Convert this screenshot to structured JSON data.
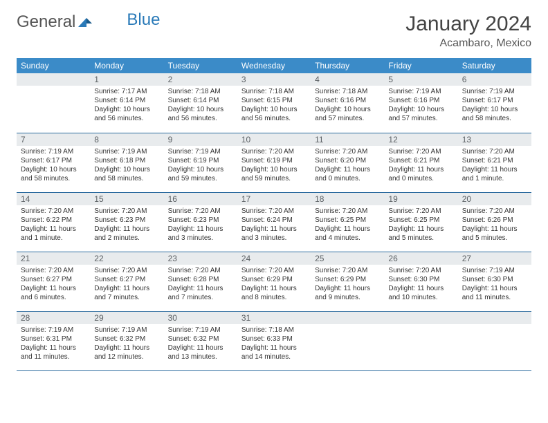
{
  "logo": {
    "text_gray": "General",
    "text_blue": "Blue"
  },
  "title": "January 2024",
  "location": "Acambaro, Mexico",
  "colors": {
    "header_bg": "#3b8bc8",
    "daynum_bg": "#e8ebed",
    "row_border": "#2a6a9e",
    "logo_blue": "#2a7ab8"
  },
  "weekdays": [
    "Sunday",
    "Monday",
    "Tuesday",
    "Wednesday",
    "Thursday",
    "Friday",
    "Saturday"
  ],
  "weeks": [
    [
      {
        "n": "",
        "sr": "",
        "ss": "",
        "dl": ""
      },
      {
        "n": "1",
        "sr": "Sunrise: 7:17 AM",
        "ss": "Sunset: 6:14 PM",
        "dl": "Daylight: 10 hours and 56 minutes."
      },
      {
        "n": "2",
        "sr": "Sunrise: 7:18 AM",
        "ss": "Sunset: 6:14 PM",
        "dl": "Daylight: 10 hours and 56 minutes."
      },
      {
        "n": "3",
        "sr": "Sunrise: 7:18 AM",
        "ss": "Sunset: 6:15 PM",
        "dl": "Daylight: 10 hours and 56 minutes."
      },
      {
        "n": "4",
        "sr": "Sunrise: 7:18 AM",
        "ss": "Sunset: 6:16 PM",
        "dl": "Daylight: 10 hours and 57 minutes."
      },
      {
        "n": "5",
        "sr": "Sunrise: 7:19 AM",
        "ss": "Sunset: 6:16 PM",
        "dl": "Daylight: 10 hours and 57 minutes."
      },
      {
        "n": "6",
        "sr": "Sunrise: 7:19 AM",
        "ss": "Sunset: 6:17 PM",
        "dl": "Daylight: 10 hours and 58 minutes."
      }
    ],
    [
      {
        "n": "7",
        "sr": "Sunrise: 7:19 AM",
        "ss": "Sunset: 6:17 PM",
        "dl": "Daylight: 10 hours and 58 minutes."
      },
      {
        "n": "8",
        "sr": "Sunrise: 7:19 AM",
        "ss": "Sunset: 6:18 PM",
        "dl": "Daylight: 10 hours and 58 minutes."
      },
      {
        "n": "9",
        "sr": "Sunrise: 7:19 AM",
        "ss": "Sunset: 6:19 PM",
        "dl": "Daylight: 10 hours and 59 minutes."
      },
      {
        "n": "10",
        "sr": "Sunrise: 7:20 AM",
        "ss": "Sunset: 6:19 PM",
        "dl": "Daylight: 10 hours and 59 minutes."
      },
      {
        "n": "11",
        "sr": "Sunrise: 7:20 AM",
        "ss": "Sunset: 6:20 PM",
        "dl": "Daylight: 11 hours and 0 minutes."
      },
      {
        "n": "12",
        "sr": "Sunrise: 7:20 AM",
        "ss": "Sunset: 6:21 PM",
        "dl": "Daylight: 11 hours and 0 minutes."
      },
      {
        "n": "13",
        "sr": "Sunrise: 7:20 AM",
        "ss": "Sunset: 6:21 PM",
        "dl": "Daylight: 11 hours and 1 minute."
      }
    ],
    [
      {
        "n": "14",
        "sr": "Sunrise: 7:20 AM",
        "ss": "Sunset: 6:22 PM",
        "dl": "Daylight: 11 hours and 1 minute."
      },
      {
        "n": "15",
        "sr": "Sunrise: 7:20 AM",
        "ss": "Sunset: 6:23 PM",
        "dl": "Daylight: 11 hours and 2 minutes."
      },
      {
        "n": "16",
        "sr": "Sunrise: 7:20 AM",
        "ss": "Sunset: 6:23 PM",
        "dl": "Daylight: 11 hours and 3 minutes."
      },
      {
        "n": "17",
        "sr": "Sunrise: 7:20 AM",
        "ss": "Sunset: 6:24 PM",
        "dl": "Daylight: 11 hours and 3 minutes."
      },
      {
        "n": "18",
        "sr": "Sunrise: 7:20 AM",
        "ss": "Sunset: 6:25 PM",
        "dl": "Daylight: 11 hours and 4 minutes."
      },
      {
        "n": "19",
        "sr": "Sunrise: 7:20 AM",
        "ss": "Sunset: 6:25 PM",
        "dl": "Daylight: 11 hours and 5 minutes."
      },
      {
        "n": "20",
        "sr": "Sunrise: 7:20 AM",
        "ss": "Sunset: 6:26 PM",
        "dl": "Daylight: 11 hours and 5 minutes."
      }
    ],
    [
      {
        "n": "21",
        "sr": "Sunrise: 7:20 AM",
        "ss": "Sunset: 6:27 PM",
        "dl": "Daylight: 11 hours and 6 minutes."
      },
      {
        "n": "22",
        "sr": "Sunrise: 7:20 AM",
        "ss": "Sunset: 6:27 PM",
        "dl": "Daylight: 11 hours and 7 minutes."
      },
      {
        "n": "23",
        "sr": "Sunrise: 7:20 AM",
        "ss": "Sunset: 6:28 PM",
        "dl": "Daylight: 11 hours and 7 minutes."
      },
      {
        "n": "24",
        "sr": "Sunrise: 7:20 AM",
        "ss": "Sunset: 6:29 PM",
        "dl": "Daylight: 11 hours and 8 minutes."
      },
      {
        "n": "25",
        "sr": "Sunrise: 7:20 AM",
        "ss": "Sunset: 6:29 PM",
        "dl": "Daylight: 11 hours and 9 minutes."
      },
      {
        "n": "26",
        "sr": "Sunrise: 7:20 AM",
        "ss": "Sunset: 6:30 PM",
        "dl": "Daylight: 11 hours and 10 minutes."
      },
      {
        "n": "27",
        "sr": "Sunrise: 7:19 AM",
        "ss": "Sunset: 6:30 PM",
        "dl": "Daylight: 11 hours and 11 minutes."
      }
    ],
    [
      {
        "n": "28",
        "sr": "Sunrise: 7:19 AM",
        "ss": "Sunset: 6:31 PM",
        "dl": "Daylight: 11 hours and 11 minutes."
      },
      {
        "n": "29",
        "sr": "Sunrise: 7:19 AM",
        "ss": "Sunset: 6:32 PM",
        "dl": "Daylight: 11 hours and 12 minutes."
      },
      {
        "n": "30",
        "sr": "Sunrise: 7:19 AM",
        "ss": "Sunset: 6:32 PM",
        "dl": "Daylight: 11 hours and 13 minutes."
      },
      {
        "n": "31",
        "sr": "Sunrise: 7:18 AM",
        "ss": "Sunset: 6:33 PM",
        "dl": "Daylight: 11 hours and 14 minutes."
      },
      {
        "n": "",
        "sr": "",
        "ss": "",
        "dl": ""
      },
      {
        "n": "",
        "sr": "",
        "ss": "",
        "dl": ""
      },
      {
        "n": "",
        "sr": "",
        "ss": "",
        "dl": ""
      }
    ]
  ]
}
